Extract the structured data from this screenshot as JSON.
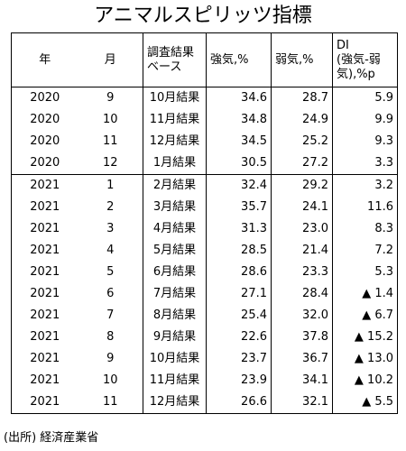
{
  "title": "アニマルスピリッツ指標",
  "headers": {
    "year": "年",
    "month": "月",
    "base_line1": "調査結果",
    "base_line2": "ベース",
    "strong": "強気,%",
    "weak": "弱気,%",
    "di_line1": "DI",
    "di_line2": "(強気-弱",
    "di_line3": "気),%p"
  },
  "rows": [
    {
      "year": "2020",
      "month": "9",
      "base": "10月結果",
      "strong": "34.6",
      "weak": "28.7",
      "di": "5.9"
    },
    {
      "year": "2020",
      "month": "10",
      "base": "11月結果",
      "strong": "34.8",
      "weak": "24.9",
      "di": "9.9"
    },
    {
      "year": "2020",
      "month": "11",
      "base": "12月結果",
      "strong": "34.5",
      "weak": "25.2",
      "di": "9.3"
    },
    {
      "year": "2020",
      "month": "12",
      "base": "1月結果",
      "strong": "30.5",
      "weak": "27.2",
      "di": "3.3"
    },
    {
      "year": "2021",
      "month": "1",
      "base": "2月結果",
      "strong": "32.4",
      "weak": "29.2",
      "di": "3.2"
    },
    {
      "year": "2021",
      "month": "2",
      "base": "3月結果",
      "strong": "35.7",
      "weak": "24.1",
      "di": "11.6"
    },
    {
      "year": "2021",
      "month": "3",
      "base": "4月結果",
      "strong": "31.3",
      "weak": "23.0",
      "di": "8.3"
    },
    {
      "year": "2021",
      "month": "4",
      "base": "5月結果",
      "strong": "28.5",
      "weak": "21.4",
      "di": "7.2"
    },
    {
      "year": "2021",
      "month": "5",
      "base": "6月結果",
      "strong": "28.6",
      "weak": "23.3",
      "di": "5.3"
    },
    {
      "year": "2021",
      "month": "6",
      "base": "7月結果",
      "strong": "27.1",
      "weak": "28.4",
      "di": "▲ 1.4"
    },
    {
      "year": "2021",
      "month": "7",
      "base": "8月結果",
      "strong": "25.4",
      "weak": "32.0",
      "di": "▲ 6.7"
    },
    {
      "year": "2021",
      "month": "8",
      "base": "9月結果",
      "strong": "22.6",
      "weak": "37.8",
      "di": "▲ 15.2"
    },
    {
      "year": "2021",
      "month": "9",
      "base": "10月結果",
      "strong": "23.7",
      "weak": "36.7",
      "di": "▲ 13.0"
    },
    {
      "year": "2021",
      "month": "10",
      "base": "11月結果",
      "strong": "23.9",
      "weak": "34.1",
      "di": "▲ 10.2"
    },
    {
      "year": "2021",
      "month": "11",
      "base": "12月結果",
      "strong": "26.6",
      "weak": "32.1",
      "di": "▲ 5.5"
    }
  ],
  "source": "(出所) 経済産業省"
}
